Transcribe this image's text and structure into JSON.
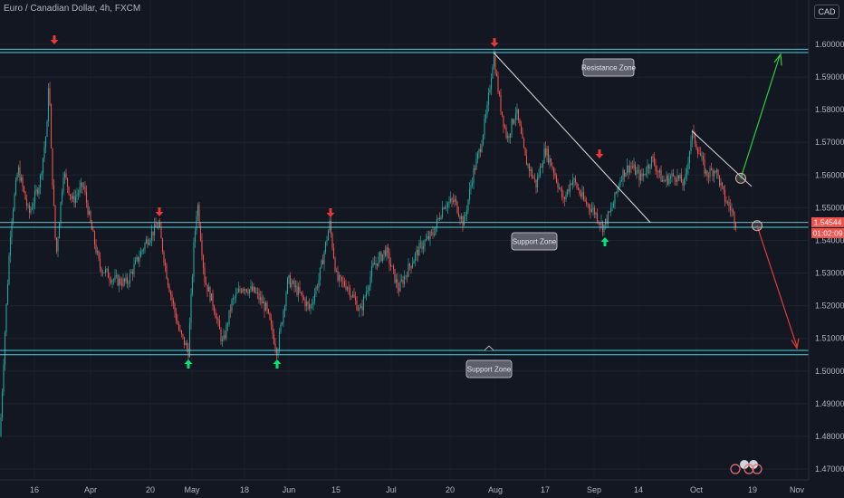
{
  "header": {
    "title": "Euro / Canadian Dollar, 4h, FXCM",
    "currency": "CAD"
  },
  "price_labels": {
    "last_price": "1.54544",
    "countdown": "01:02:09"
  },
  "annotations": {
    "resistance": "Resistance Zone",
    "support_mid": "Support Zone",
    "support_low": "Support Zone"
  },
  "colors": {
    "background": "#131722",
    "up": "#26a69a",
    "down": "#ef5350",
    "zone": "#4dd0e1",
    "arrow_down": "#e53935",
    "arrow_up": "#00e676",
    "bull_path": "#2ecc40",
    "bear_path": "#e53935"
  },
  "chart_data": {
    "type": "candlestick",
    "title": "Euro / Canadian Dollar, 4h, FXCM",
    "x_tick_labels": [
      "16",
      "Apr",
      "20",
      "May",
      "18",
      "Jun",
      "15",
      "Jul",
      "20",
      "Aug",
      "17",
      "Sep",
      "14",
      "Oct",
      "19",
      "Nov"
    ],
    "y_tick_labels": [
      "1.60000",
      "1.59000",
      "1.58000",
      "1.57000",
      "1.56000",
      "1.55000",
      "1.54000",
      "1.53000",
      "1.52000",
      "1.51000",
      "1.50000",
      "1.49000",
      "1.48000",
      "1.47000"
    ],
    "ylim": [
      1.467,
      1.612
    ],
    "last_price": 1.54544,
    "zones": [
      {
        "name": "Resistance Zone",
        "low": 1.5975,
        "high": 1.5985
      },
      {
        "name": "Support Zone",
        "low": 1.544,
        "high": 1.5455
      },
      {
        "name": "Support Zone",
        "low": 1.505,
        "high": 1.5063
      }
    ],
    "trendlines": [
      {
        "from": [
          "Aug",
          1.5975
        ],
        "to": [
          "Sep 14",
          1.5455
        ]
      },
      {
        "from": [
          "Oct",
          1.5735
        ],
        "to": [
          "Oct 19",
          1.5565
        ]
      }
    ],
    "projections": [
      {
        "direction": "up",
        "from": 1.559,
        "to": 1.5965
      },
      {
        "direction": "down",
        "from": 1.5445,
        "to": 1.5075
      }
    ],
    "marked_highs": [
      1.5965,
      1.5455,
      1.5445,
      1.5975,
      1.564
    ],
    "marked_lows": [
      1.505,
      1.505,
      1.542
    ]
  }
}
